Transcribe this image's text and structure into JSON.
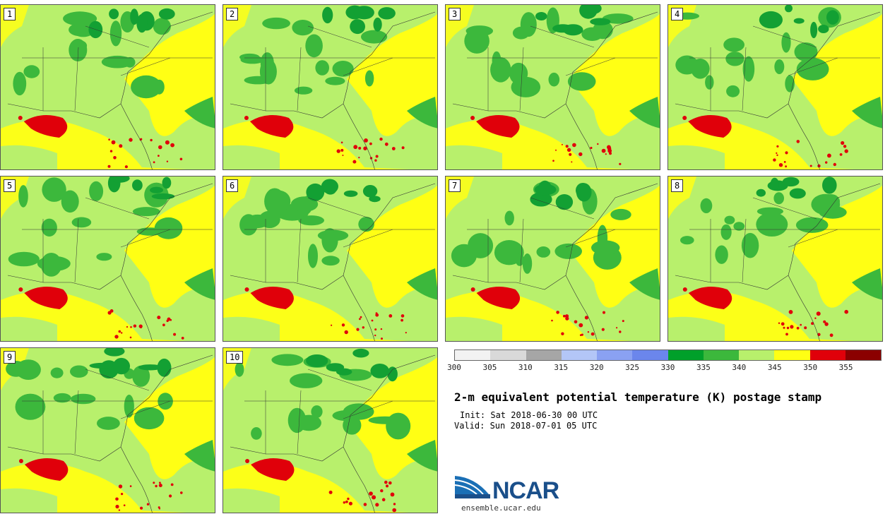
{
  "title": "2-m equivalent potential temperature (K) postage stamp",
  "init_line": "Init: Sat 2018-06-30 00 UTC",
  "valid_line": "Valid: Sun 2018-07-01 05 UTC",
  "panels": [
    "1",
    "2",
    "3",
    "4",
    "5",
    "6",
    "7",
    "8",
    "9",
    "10"
  ],
  "colorbar": {
    "ticks": [
      "300",
      "305",
      "310",
      "315",
      "320",
      "325",
      "330",
      "335",
      "340",
      "345",
      "350",
      "355"
    ],
    "colors": [
      "#f2f2f2",
      "#d9d9d9",
      "#a6a6a6",
      "#b3c6f7",
      "#8aa1f2",
      "#6b86ec",
      "#00a02a",
      "#3cb83c",
      "#b8f06c",
      "#ffff14",
      "#e0000a",
      "#8b0000"
    ]
  },
  "colors": {
    "green": "#3cb83c",
    "dark_green": "#13a033",
    "light_green": "#b8f06c",
    "yellow": "#ffff14",
    "red": "#e0000a"
  },
  "logo": {
    "text": "NCAR",
    "url": "ensemble.ucar.edu"
  }
}
